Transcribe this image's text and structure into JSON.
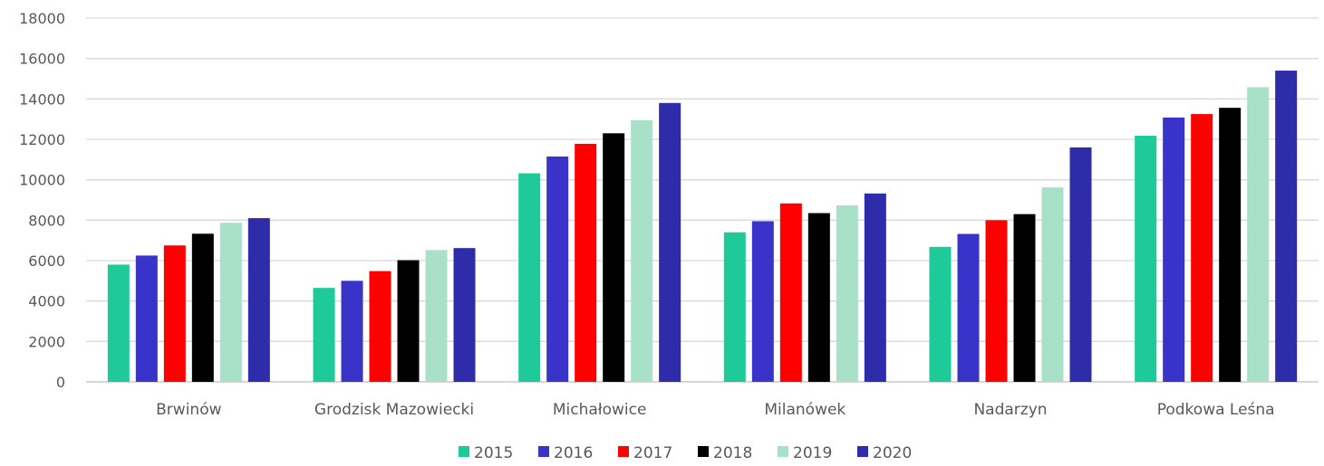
{
  "chart_data": {
    "type": "bar",
    "categories": [
      "Brwinów",
      "Grodzisk Mazowiecki",
      "Michałowice",
      "Milanówek",
      "Nadarzyn",
      "Podkowa Leśna"
    ],
    "series": [
      {
        "name": "2015",
        "color": "#1ec99a",
        "values": [
          5800,
          4650,
          10320,
          7400,
          6680,
          12180
        ]
      },
      {
        "name": "2016",
        "color": "#3a33c9",
        "values": [
          6250,
          5000,
          11150,
          7950,
          7320,
          13080
        ]
      },
      {
        "name": "2017",
        "color": "#ff0000",
        "values": [
          6750,
          5480,
          11780,
          8830,
          8000,
          13250
        ]
      },
      {
        "name": "2018",
        "color": "#000000",
        "values": [
          7330,
          6020,
          12300,
          8350,
          8300,
          13560
        ]
      },
      {
        "name": "2019",
        "color": "#a8e0c8",
        "values": [
          7870,
          6520,
          12950,
          8730,
          9620,
          14580
        ]
      },
      {
        "name": "2020",
        "color": "#2e2ca8",
        "values": [
          8100,
          6620,
          13800,
          9320,
          11600,
          15400
        ]
      }
    ],
    "y_ticks": [
      "0",
      "2000",
      "4000",
      "6000",
      "8000",
      "10000",
      "12000",
      "14000",
      "16000",
      "18000"
    ],
    "ylim": [
      0,
      18000
    ],
    "grid": true,
    "legend_position": "bottom-center",
    "title": "",
    "xlabel": "",
    "ylabel": ""
  }
}
